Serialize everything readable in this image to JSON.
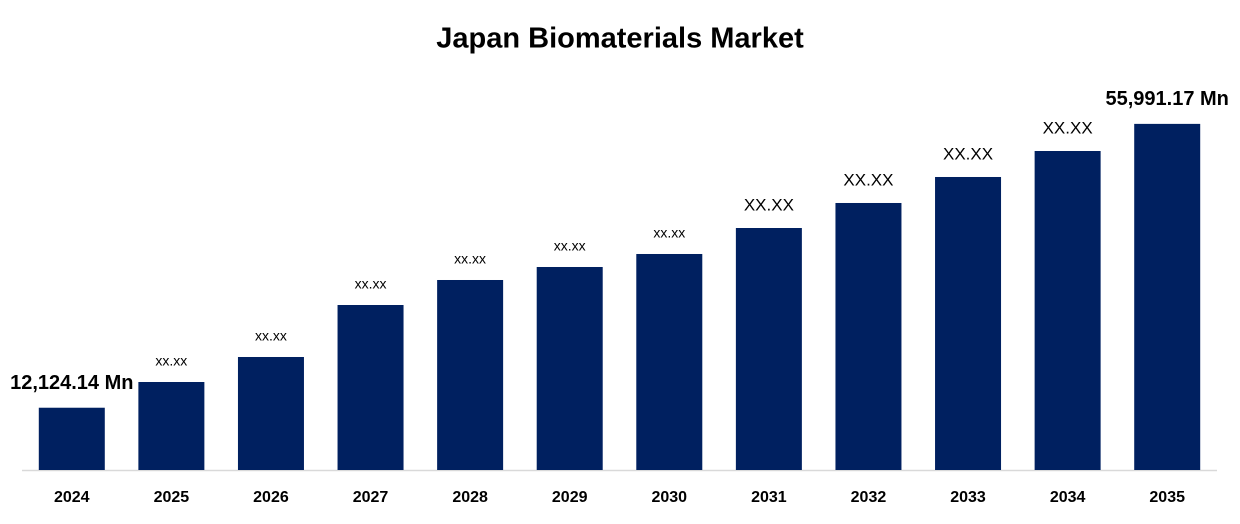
{
  "chart_data": {
    "type": "bar",
    "title": "Japan Biomaterials Market",
    "categories": [
      "2024",
      "2025",
      "2026",
      "2027",
      "2028",
      "2029",
      "2030",
      "2031",
      "2032",
      "2033",
      "2034",
      "2035"
    ],
    "values": [
      12124.14,
      16100,
      19964,
      28000,
      31864,
      33873,
      35883,
      39900,
      43765,
      47783,
      51800,
      55991.17
    ],
    "value_labels": [
      "12,124.14 Mn",
      "xx.xx",
      "xx.xx",
      "xx.xx",
      "xx.xx",
      "xx.xx",
      "xx.xx",
      "XX.XX",
      "XX.XX",
      "XX.XX",
      "XX.XX",
      "55,991.17 Mn"
    ],
    "color": "#002060",
    "ylim": [
      2500,
      62000
    ]
  }
}
